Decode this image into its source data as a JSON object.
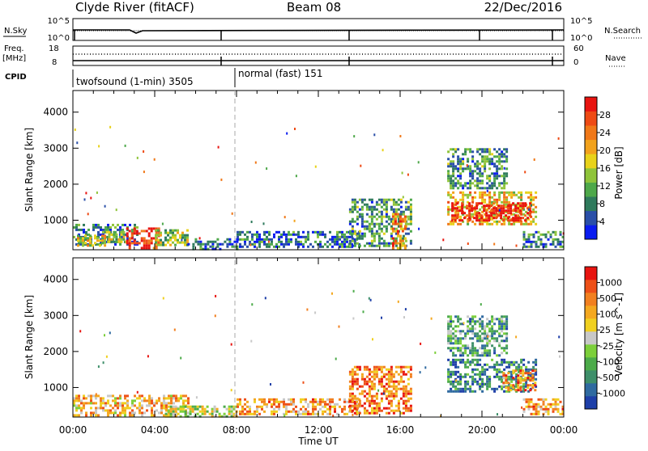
{
  "header": {
    "station": "Clyde River (fitACF)",
    "beam": "Beam 08",
    "date": "22/Dec/2016"
  },
  "aux_panels": {
    "nsky_label": "N.Sky",
    "nsky_ticks": [
      "10^5",
      "10^0"
    ],
    "nsearch_label": "N.Search",
    "nsearch_ticks": [
      "10^5",
      "10^0"
    ],
    "freq_label_line1": "Freq.",
    "freq_label_line2": "[MHz]",
    "freq_ticks": [
      "18",
      "8"
    ],
    "nave_label": "Nave",
    "nave_ticks": [
      "60",
      "0"
    ],
    "cpid_label": "CPID",
    "cpid_segments": [
      {
        "text": "twofsound (1-min) 3505",
        "start_hour": 0,
        "end_hour": 7.95
      },
      {
        "text": "normal (fast) 151",
        "start_hour": 7.95,
        "end_hour": 24
      }
    ]
  },
  "chart_data": [
    {
      "type": "heatmap",
      "name": "power",
      "ylabel": "Slant Range [km]",
      "xlabel": "",
      "ylim": [
        180,
        4600
      ],
      "yticks": [
        1000,
        2000,
        3000,
        4000
      ],
      "xlim_hours": [
        0,
        24
      ],
      "colorbar": {
        "label": "Power [dB]",
        "ticks": [
          "4",
          "8",
          "12",
          "16",
          "20",
          "24",
          "28"
        ],
        "colors": [
          "#0a1cf0",
          "#2a4fa8",
          "#2f7a5c",
          "#4ea84a",
          "#8fc43a",
          "#e8d21a",
          "#f2a21c",
          "#f07818",
          "#ee4a14",
          "#e81410"
        ]
      },
      "regions": [
        {
          "t0": 0.0,
          "t1": 3.2,
          "r0": 300,
          "r1": 900,
          "level": 0.25
        },
        {
          "t0": 0.2,
          "t1": 1.6,
          "r0": 300,
          "r1": 600,
          "level": 0.55
        },
        {
          "t0": 1.6,
          "t1": 2.6,
          "r0": 400,
          "r1": 700,
          "level": 0.45
        },
        {
          "t0": 2.6,
          "t1": 4.2,
          "r0": 230,
          "r1": 800,
          "level": 0.9
        },
        {
          "t0": 4.0,
          "t1": 5.6,
          "r0": 300,
          "r1": 750,
          "level": 0.45
        },
        {
          "t0": 5.6,
          "t1": 8.0,
          "r0": 230,
          "r1": 500,
          "level": 0.2
        },
        {
          "t0": 8.0,
          "t1": 14.0,
          "r0": 230,
          "r1": 700,
          "level": 0.2
        },
        {
          "t0": 13.5,
          "t1": 16.5,
          "r0": 300,
          "r1": 1600,
          "level": 0.3
        },
        {
          "t0": 15.6,
          "t1": 16.2,
          "r0": 230,
          "r1": 1200,
          "level": 0.7
        },
        {
          "t0": 18.3,
          "t1": 22.6,
          "r0": 900,
          "r1": 1800,
          "level": 0.6
        },
        {
          "t0": 18.5,
          "t1": 22.4,
          "r0": 1000,
          "r1": 1500,
          "level": 0.95
        },
        {
          "t0": 18.3,
          "t1": 21.2,
          "r0": 1900,
          "r1": 3000,
          "level": 0.3
        },
        {
          "t0": 22.0,
          "t1": 24.0,
          "r0": 230,
          "r1": 700,
          "level": 0.25
        }
      ]
    },
    {
      "type": "heatmap",
      "name": "velocity",
      "ylabel": "Slant Range [km]",
      "xlabel": "Time UT",
      "ylim": [
        180,
        4600
      ],
      "yticks": [
        1000,
        2000,
        3000,
        4000
      ],
      "xticks": [
        "00:00",
        "04:00",
        "08:00",
        "12:00",
        "16:00",
        "20:00",
        "00:00"
      ],
      "xtick_hours": [
        0,
        4,
        8,
        12,
        16,
        20,
        24
      ],
      "xlim_hours": [
        0,
        24
      ],
      "colorbar": {
        "label": "Velocity [m s^-1]",
        "ticks": [
          "1000",
          "500",
          "100",
          "25",
          "-25",
          "-100",
          "-500",
          "-1000"
        ],
        "colors": [
          "#1e3fa8",
          "#2f6aa0",
          "#3e8f6a",
          "#4cab4a",
          "#7ccf3a",
          "#c8c8c8",
          "#f0d020",
          "#f4a820",
          "#f28020",
          "#ee5018",
          "#e81410"
        ]
      },
      "regions": [
        {
          "t0": 0.0,
          "t1": 5.6,
          "r0": 250,
          "r1": 800,
          "level": 0.65
        },
        {
          "t0": 4.5,
          "t1": 8.0,
          "r0": 230,
          "r1": 500,
          "level": 0.5
        },
        {
          "t0": 8.0,
          "t1": 14.0,
          "r0": 230,
          "r1": 700,
          "level": 0.7
        },
        {
          "t0": 13.5,
          "t1": 16.5,
          "r0": 300,
          "r1": 1600,
          "level": 0.8
        },
        {
          "t0": 18.3,
          "t1": 22.6,
          "r0": 900,
          "r1": 1800,
          "level": 0.2
        },
        {
          "t0": 21.0,
          "t1": 22.6,
          "r0": 900,
          "r1": 1500,
          "level": 0.75
        },
        {
          "t0": 18.3,
          "t1": 21.2,
          "r0": 1900,
          "r1": 3000,
          "level": 0.3
        },
        {
          "t0": 22.0,
          "t1": 24.0,
          "r0": 230,
          "r1": 700,
          "level": 0.7
        }
      ]
    }
  ]
}
